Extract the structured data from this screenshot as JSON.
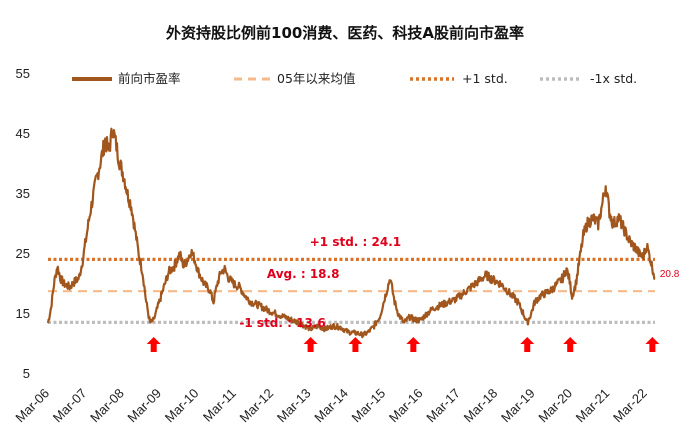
{
  "chart_data": {
    "type": "line",
    "title": "外资持股比例前100消费、医药、科技A股前向市盈率",
    "ylim": [
      5,
      55
    ],
    "y_ticks": [
      5,
      15,
      25,
      35,
      45,
      55
    ],
    "x_ticks": [
      "Mar-06",
      "Mar-07",
      "Mar-08",
      "Mar-09",
      "Mar-10",
      "Mar-11",
      "Mar-12",
      "Mar-13",
      "Mar-14",
      "Mar-15",
      "Mar-16",
      "Mar-17",
      "Mar-18",
      "Mar-19",
      "Mar-20",
      "Mar-21",
      "Mar-22"
    ],
    "xlim": [
      2006.17,
      2022.42
    ],
    "legend_position": "top",
    "grid": false,
    "series": [
      {
        "name": "前向市盈率",
        "color": "#a0561d",
        "points": [
          [
            2006.17,
            13.5
          ],
          [
            2006.25,
            16
          ],
          [
            2006.33,
            20
          ],
          [
            2006.42,
            23
          ],
          [
            2006.5,
            21
          ],
          [
            2006.6,
            20
          ],
          [
            2006.75,
            19.5
          ],
          [
            2006.9,
            20.5
          ],
          [
            2007.0,
            21
          ],
          [
            2007.1,
            24
          ],
          [
            2007.2,
            28
          ],
          [
            2007.3,
            32
          ],
          [
            2007.45,
            37
          ],
          [
            2007.6,
            41
          ],
          [
            2007.7,
            44
          ],
          [
            2007.8,
            42
          ],
          [
            2007.9,
            46
          ],
          [
            2008.0,
            43
          ],
          [
            2008.1,
            40
          ],
          [
            2008.2,
            38
          ],
          [
            2008.3,
            35
          ],
          [
            2008.4,
            33
          ],
          [
            2008.5,
            29
          ],
          [
            2008.6,
            25
          ],
          [
            2008.7,
            22
          ],
          [
            2008.8,
            17
          ],
          [
            2008.9,
            13.5
          ],
          [
            2009.0,
            14
          ],
          [
            2009.1,
            16
          ],
          [
            2009.2,
            18
          ],
          [
            2009.3,
            20
          ],
          [
            2009.4,
            22
          ],
          [
            2009.55,
            23
          ],
          [
            2009.7,
            25
          ],
          [
            2009.8,
            23
          ],
          [
            2009.9,
            24
          ],
          [
            2010.0,
            25.5
          ],
          [
            2010.1,
            24
          ],
          [
            2010.2,
            22
          ],
          [
            2010.35,
            20
          ],
          [
            2010.5,
            19
          ],
          [
            2010.6,
            17
          ],
          [
            2010.7,
            20
          ],
          [
            2010.8,
            22
          ],
          [
            2010.9,
            22.5
          ],
          [
            2011.0,
            21
          ],
          [
            2011.15,
            20
          ],
          [
            2011.3,
            19.5
          ],
          [
            2011.45,
            18
          ],
          [
            2011.6,
            17
          ],
          [
            2011.8,
            16.5
          ],
          [
            2011.95,
            16
          ],
          [
            2012.1,
            15.5
          ],
          [
            2012.3,
            15
          ],
          [
            2012.5,
            14.5
          ],
          [
            2012.7,
            14
          ],
          [
            2012.9,
            13.5
          ],
          [
            2013.05,
            13
          ],
          [
            2013.2,
            12.5
          ],
          [
            2013.4,
            13
          ],
          [
            2013.6,
            12.5
          ],
          [
            2013.8,
            13
          ],
          [
            2014.0,
            12.8
          ],
          [
            2014.2,
            12
          ],
          [
            2014.45,
            11.8
          ],
          [
            2014.6,
            11.5
          ],
          [
            2014.75,
            12
          ],
          [
            2014.9,
            13
          ],
          [
            2015.05,
            14.5
          ],
          [
            2015.2,
            18
          ],
          [
            2015.33,
            21
          ],
          [
            2015.45,
            17
          ],
          [
            2015.55,
            15
          ],
          [
            2015.7,
            13.5
          ],
          [
            2015.85,
            14.5
          ],
          [
            2016.0,
            14
          ],
          [
            2016.15,
            14
          ],
          [
            2016.3,
            15
          ],
          [
            2016.5,
            16
          ],
          [
            2016.7,
            16.5
          ],
          [
            2016.9,
            17
          ],
          [
            2017.1,
            17.5
          ],
          [
            2017.3,
            18.5
          ],
          [
            2017.5,
            19.5
          ],
          [
            2017.7,
            20.5
          ],
          [
            2017.9,
            21.5
          ],
          [
            2018.0,
            21
          ],
          [
            2018.15,
            20.5
          ],
          [
            2018.3,
            20
          ],
          [
            2018.45,
            19
          ],
          [
            2018.6,
            18
          ],
          [
            2018.75,
            17
          ],
          [
            2018.9,
            15
          ],
          [
            2019.0,
            13.5
          ],
          [
            2019.1,
            15
          ],
          [
            2019.2,
            17
          ],
          [
            2019.35,
            18
          ],
          [
            2019.5,
            18.5
          ],
          [
            2019.65,
            19
          ],
          [
            2019.8,
            20
          ],
          [
            2019.95,
            21
          ],
          [
            2020.05,
            22.5
          ],
          [
            2020.12,
            21
          ],
          [
            2020.2,
            18
          ],
          [
            2020.3,
            20
          ],
          [
            2020.4,
            24
          ],
          [
            2020.5,
            28
          ],
          [
            2020.6,
            30
          ],
          [
            2020.75,
            31
          ],
          [
            2020.9,
            30
          ],
          [
            2021.0,
            33
          ],
          [
            2021.1,
            36.5
          ],
          [
            2021.2,
            32
          ],
          [
            2021.3,
            30
          ],
          [
            2021.45,
            31
          ],
          [
            2021.6,
            29
          ],
          [
            2021.75,
            27
          ],
          [
            2021.9,
            26
          ],
          [
            2022.0,
            25
          ],
          [
            2022.1,
            24.5
          ],
          [
            2022.2,
            26.5
          ],
          [
            2022.3,
            24
          ],
          [
            2022.38,
            22
          ],
          [
            2022.42,
            20.8
          ]
        ]
      },
      {
        "name": "05年以来均值",
        "value": 18.8,
        "color": "#f5b98a",
        "dash": "dash"
      },
      {
        "name": "+1 std.",
        "value": 24.1,
        "color": "#d9732a",
        "dash": "dot"
      },
      {
        "name": "-1x std.",
        "value": 13.6,
        "color": "#bdbdbd",
        "dash": "dot"
      }
    ],
    "annotations": [
      {
        "text": "+1 std. : 24.1",
        "x": 2014.4,
        "y": 26.3
      },
      {
        "text": "Avg. : 18.8",
        "x": 2013.0,
        "y": 21.0
      },
      {
        "text": "-1 std. : 13.6",
        "x": 2012.45,
        "y": 12.8
      },
      {
        "text": "20.8",
        "x": 2022.55,
        "y": 21.2
      }
    ],
    "markers": [
      2009.0,
      2013.2,
      2014.4,
      2015.95,
      2019.0,
      2020.15,
      2022.35
    ],
    "marker_color": "#ff0000"
  }
}
